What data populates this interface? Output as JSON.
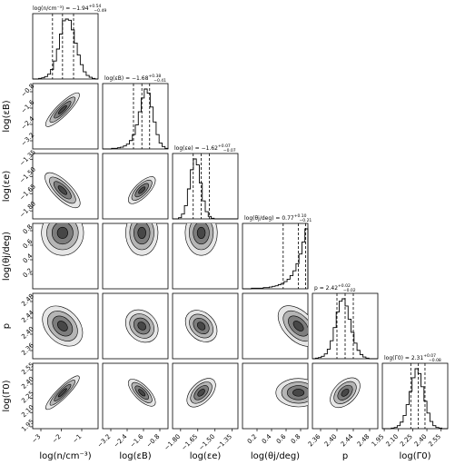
{
  "chart_data": {
    "type": "corner",
    "parameters": [
      {
        "axis_label": "log(n/cm⁻³)",
        "title_lhs": "log(n/cm⁻³)",
        "median": "−1.94",
        "err_plus": "+0.54",
        "err_minus": "−0.49",
        "range": [
          -3.4,
          -0.2
        ],
        "ticks": [
          -3,
          -2,
          -1
        ],
        "tick_labels": [
          "−3",
          "−2",
          "−1"
        ],
        "center": -1.94,
        "q16": -2.43,
        "q84": -1.4,
        "hist": [
          0,
          0,
          1,
          2,
          4,
          8,
          16,
          30,
          50,
          75,
          97,
          100,
          98,
          82,
          60,
          40,
          24,
          12,
          6,
          3,
          1,
          0
        ]
      },
      {
        "axis_label": "log(εB)",
        "title_lhs": "log(εB)",
        "median": "−1.68",
        "err_plus": "+0.38",
        "err_minus": "−0.41",
        "range": [
          -3.6,
          -0.4
        ],
        "ticks": [
          -3.2,
          -2.4,
          -1.6,
          -0.8
        ],
        "tick_labels": [
          "−3.2",
          "−2.4",
          "−1.6",
          "−0.8"
        ],
        "center": -1.68,
        "q16": -2.09,
        "q84": -1.3,
        "hist": [
          0,
          0,
          0,
          1,
          1,
          2,
          3,
          5,
          8,
          14,
          24,
          40,
          62,
          85,
          100,
          93,
          70,
          45,
          24,
          10,
          4,
          1
        ]
      },
      {
        "axis_label": "log(εe)",
        "title_lhs": "log(εe)",
        "median": "−1.62",
        "err_plus": "+0.07",
        "err_minus": "−0.07",
        "range": [
          -1.87,
          -1.3
        ],
        "ticks": [
          -1.8,
          -1.65,
          -1.5,
          -1.35
        ],
        "tick_labels": [
          "−1.80",
          "−1.65",
          "−1.50",
          "−1.35"
        ],
        "center": -1.62,
        "q16": -1.69,
        "q84": -1.55,
        "hist": [
          0,
          0,
          2,
          8,
          22,
          50,
          82,
          100,
          90,
          60,
          30,
          12,
          4,
          1,
          0,
          0,
          0,
          0,
          0,
          0,
          0,
          0
        ]
      },
      {
        "axis_label": "log(θj/deg)",
        "title_lhs": "log(θj/deg)",
        "median": "0.77",
        "err_plus": "+0.10",
        "err_minus": "−0.21",
        "range": [
          0.0,
          0.9
        ],
        "ticks": [
          0.2,
          0.4,
          0.6,
          0.8
        ],
        "tick_labels": [
          "0.2",
          "0.4",
          "0.6",
          "0.8"
        ],
        "center": 0.77,
        "q16": 0.56,
        "q84": 0.87,
        "hist": [
          0,
          0,
          0,
          1,
          1,
          1,
          1,
          2,
          2,
          3,
          4,
          5,
          7,
          9,
          12,
          16,
          22,
          30,
          42,
          58,
          78,
          100
        ]
      },
      {
        "axis_label": "p",
        "title_lhs": "p",
        "median": "2.42",
        "err_plus": "+0.02",
        "err_minus": "−0.02",
        "range": [
          2.34,
          2.5
        ],
        "ticks": [
          2.36,
          2.4,
          2.44,
          2.48
        ],
        "tick_labels": [
          "2.36",
          "2.40",
          "2.44",
          "2.48"
        ],
        "center": 2.42,
        "q16": 2.4,
        "q84": 2.44,
        "hist": [
          0,
          1,
          2,
          4,
          8,
          16,
          30,
          52,
          78,
          96,
          100,
          88,
          66,
          44,
          26,
          14,
          7,
          3,
          1,
          0,
          0,
          0
        ]
      },
      {
        "axis_label": "log(Γ0)",
        "title_lhs": "log(Γ0)",
        "median": "2.31",
        "err_plus": "+0.07",
        "err_minus": "−0.08",
        "range": [
          1.93,
          2.62
        ],
        "ticks": [
          1.95,
          2.1,
          2.25,
          2.4,
          2.55
        ],
        "tick_labels": [
          "1.95",
          "2.10",
          "2.25",
          "2.40",
          "2.55"
        ],
        "center": 2.31,
        "q16": 2.23,
        "q84": 2.38,
        "hist": [
          0,
          0,
          0,
          1,
          2,
          5,
          11,
          22,
          40,
          62,
          85,
          100,
          92,
          70,
          46,
          26,
          12,
          5,
          2,
          1,
          0,
          0
        ]
      }
    ],
    "contour_fills": [
      "#e6e6e6",
      "#b5b5b5",
      "#7d7d7d",
      "#474747"
    ],
    "line_color": "#000000"
  }
}
